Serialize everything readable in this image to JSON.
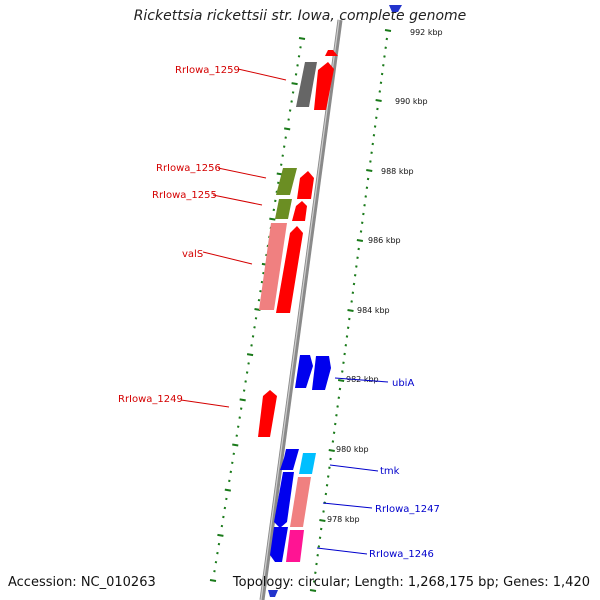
{
  "title": "Rickettsia rickettsii str. Iowa, complete genome",
  "footer": {
    "accession": "Accession: NC_010263",
    "summary": "Topology: circular; Length: 1,268,175 bp; Genes: 1,420"
  },
  "colors": {
    "backbone": "#8a8a8a",
    "tick": "#1a7a1a",
    "label_red": "#d40000",
    "label_blue": "#0000cc"
  },
  "ticks_kbp": [
    "992 kbp",
    "990 kbp",
    "988 kbp",
    "986 kbp",
    "984 kbp",
    "982 kbp",
    "980 kbp",
    "978 kbp"
  ],
  "gene_labels": [
    {
      "text": "RrIowa_1259",
      "color": "red"
    },
    {
      "text": "RrIowa_1256",
      "color": "red"
    },
    {
      "text": "RrIowa_1255",
      "color": "red"
    },
    {
      "text": "valS",
      "color": "red"
    },
    {
      "text": "RrIowa_1249",
      "color": "red"
    },
    {
      "text": "ubiA",
      "color": "blue"
    },
    {
      "text": "tmk",
      "color": "blue"
    },
    {
      "text": "RrIowa_1247",
      "color": "blue"
    },
    {
      "text": "RrIowa_1246",
      "color": "blue"
    }
  ],
  "features": [
    {
      "name": "feature-gray",
      "color": "#666666"
    },
    {
      "name": "feature-olive",
      "color": "#6b8e23"
    },
    {
      "name": "feature-pink",
      "color": "#f08080"
    },
    {
      "name": "feature-red",
      "color": "#ff0000"
    },
    {
      "name": "feature-blue",
      "color": "#0000ee"
    },
    {
      "name": "feature-cyan",
      "color": "#00bfff"
    },
    {
      "name": "feature-magenta",
      "color": "#ff1493"
    }
  ]
}
